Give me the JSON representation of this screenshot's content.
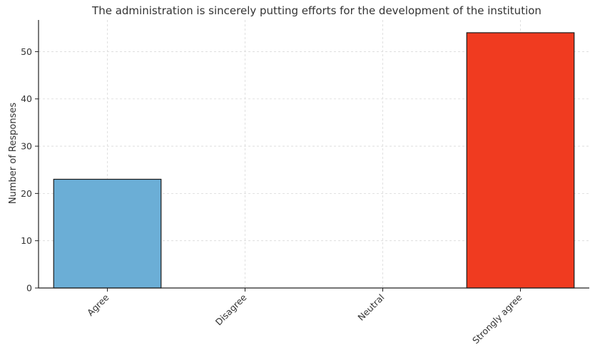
{
  "chart_data": {
    "type": "bar",
    "title": "The administration is sincerely putting efforts for the development of the institution",
    "xlabel": "",
    "ylabel": "Number of Responses",
    "categories": [
      "Agree",
      "Disagree",
      "Neutral",
      "Strongly agree"
    ],
    "values": [
      23,
      0,
      0,
      54
    ],
    "colors": [
      "#6baed6",
      "#9ecae1",
      "#fdae6b",
      "#f03b20"
    ],
    "ylim": [
      0,
      56.7
    ],
    "yticks": [
      0,
      10,
      20,
      30,
      40,
      50
    ],
    "grid": true,
    "legend": "none"
  }
}
